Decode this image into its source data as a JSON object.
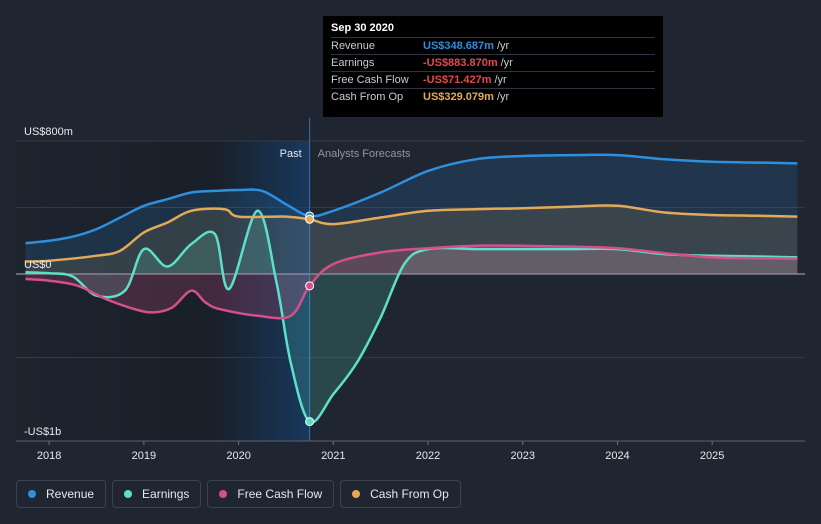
{
  "chart_data": {
    "type": "area",
    "x_ticks": [
      "2018",
      "2019",
      "2020",
      "2021",
      "2022",
      "2023",
      "2024",
      "2025"
    ],
    "y_axis_labels": [
      "US$800m",
      "US$0",
      "-US$1b"
    ],
    "ylim": [
      -1000,
      800
    ],
    "section_labels": {
      "past": "Past",
      "forecast": "Analysts Forecasts"
    },
    "divider_date": "Sep 30 2020",
    "series": [
      {
        "name": "Revenue",
        "color": "#2e8fdc",
        "points": [
          [
            2017.75,
            185
          ],
          [
            2018.0,
            200
          ],
          [
            2018.25,
            225
          ],
          [
            2018.5,
            270
          ],
          [
            2018.75,
            340
          ],
          [
            2019.0,
            410
          ],
          [
            2019.25,
            450
          ],
          [
            2019.5,
            490
          ],
          [
            2019.75,
            500
          ],
          [
            2020.0,
            505
          ],
          [
            2020.25,
            500
          ],
          [
            2020.5,
            420
          ],
          [
            2020.75,
            349
          ],
          [
            2021.0,
            380
          ],
          [
            2021.5,
            490
          ],
          [
            2022.0,
            620
          ],
          [
            2022.5,
            690
          ],
          [
            2023.0,
            710
          ],
          [
            2023.5,
            715
          ],
          [
            2024.0,
            715
          ],
          [
            2024.5,
            690
          ],
          [
            2025.0,
            675
          ],
          [
            2025.5,
            670
          ],
          [
            2025.9,
            665
          ]
        ]
      },
      {
        "name": "Earnings",
        "color": "#5de0c8",
        "points": [
          [
            2017.75,
            10
          ],
          [
            2018.0,
            5
          ],
          [
            2018.25,
            -15
          ],
          [
            2018.5,
            -130
          ],
          [
            2018.8,
            -100
          ],
          [
            2019.0,
            150
          ],
          [
            2019.25,
            45
          ],
          [
            2019.5,
            180
          ],
          [
            2019.75,
            240
          ],
          [
            2019.9,
            -90
          ],
          [
            2020.2,
            380
          ],
          [
            2020.4,
            -50
          ],
          [
            2020.55,
            -530
          ],
          [
            2020.75,
            -884
          ],
          [
            2021.0,
            -720
          ],
          [
            2021.25,
            -530
          ],
          [
            2021.5,
            -260
          ],
          [
            2021.75,
            60
          ],
          [
            2022.0,
            150
          ],
          [
            2022.5,
            150
          ],
          [
            2023.0,
            150
          ],
          [
            2023.5,
            150
          ],
          [
            2024.0,
            150
          ],
          [
            2024.5,
            120
          ],
          [
            2025.0,
            110
          ],
          [
            2025.5,
            105
          ],
          [
            2025.9,
            100
          ]
        ]
      },
      {
        "name": "Free Cash Flow",
        "color": "#d4508a",
        "points": [
          [
            2017.75,
            -30
          ],
          [
            2018.0,
            -40
          ],
          [
            2018.3,
            -70
          ],
          [
            2018.6,
            -150
          ],
          [
            2018.9,
            -210
          ],
          [
            2019.1,
            -230
          ],
          [
            2019.3,
            -200
          ],
          [
            2019.5,
            -100
          ],
          [
            2019.65,
            -170
          ],
          [
            2019.8,
            -210
          ],
          [
            2020.2,
            -250
          ],
          [
            2020.55,
            -250
          ],
          [
            2020.75,
            -71
          ],
          [
            2021.0,
            60
          ],
          [
            2021.5,
            130
          ],
          [
            2022.0,
            155
          ],
          [
            2022.5,
            170
          ],
          [
            2023.0,
            170
          ],
          [
            2023.5,
            165
          ],
          [
            2024.0,
            155
          ],
          [
            2024.5,
            125
          ],
          [
            2025.0,
            100
          ],
          [
            2025.5,
            95
          ],
          [
            2025.9,
            92
          ]
        ]
      },
      {
        "name": "Cash From Op",
        "color": "#e3a959",
        "points": [
          [
            2017.75,
            75
          ],
          [
            2018.0,
            80
          ],
          [
            2018.5,
            110
          ],
          [
            2018.75,
            140
          ],
          [
            2019.0,
            250
          ],
          [
            2019.25,
            310
          ],
          [
            2019.5,
            380
          ],
          [
            2019.85,
            390
          ],
          [
            2020.0,
            345
          ],
          [
            2020.5,
            345
          ],
          [
            2020.75,
            329
          ],
          [
            2021.0,
            300
          ],
          [
            2021.5,
            340
          ],
          [
            2022.0,
            380
          ],
          [
            2022.5,
            390
          ],
          [
            2023.0,
            395
          ],
          [
            2023.5,
            405
          ],
          [
            2024.0,
            410
          ],
          [
            2024.5,
            370
          ],
          [
            2025.0,
            355
          ],
          [
            2025.5,
            350
          ],
          [
            2025.9,
            345
          ]
        ]
      }
    ]
  },
  "tooltip": {
    "date": "Sep 30 2020",
    "rows": [
      {
        "label": "Revenue",
        "value": "US$348.687m",
        "unit": "/yr",
        "color": "#2e8fdc"
      },
      {
        "label": "Earnings",
        "value": "-US$883.870m",
        "unit": "/yr",
        "color": "#e5484d"
      },
      {
        "label": "Free Cash Flow",
        "value": "-US$71.427m",
        "unit": "/yr",
        "color": "#e5484d"
      },
      {
        "label": "Cash From Op",
        "value": "US$329.079m",
        "unit": "/yr",
        "color": "#e3a959"
      }
    ]
  },
  "legend": [
    {
      "label": "Revenue",
      "color": "#2e8fdc"
    },
    {
      "label": "Earnings",
      "color": "#5de0c8"
    },
    {
      "label": "Free Cash Flow",
      "color": "#d4508a"
    },
    {
      "label": "Cash From Op",
      "color": "#e3a959"
    }
  ]
}
